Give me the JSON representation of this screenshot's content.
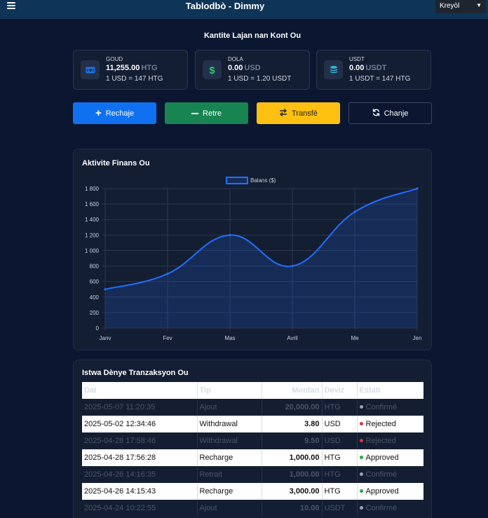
{
  "header": {
    "title": "Tablodbò - Dimmy",
    "language": "Kreyòl"
  },
  "balances_section": {
    "title": "Kantite Lajan nan Kont Ou",
    "cards": [
      {
        "label": "GOUD",
        "amount": "11,255.00",
        "currency": "HTG",
        "rate": "1 USD = 147 HTG",
        "icon": "money-bill-icon",
        "accent": "#1a73e8"
      },
      {
        "label": "DOLA",
        "amount": "0.00",
        "currency": "USD",
        "rate": "1 USD = 1.20 USDT",
        "icon": "dollar-icon",
        "accent": "#2ecc71"
      },
      {
        "label": "USDT",
        "amount": "0.00",
        "currency": "USDT",
        "rate": "1 USDT = 147 HTG",
        "icon": "coins-icon",
        "accent": "#2fb7d8"
      }
    ]
  },
  "actions": {
    "recharge": "Rechaje",
    "withdraw": "Retre",
    "transfer": "Transfè",
    "exchange": "Chanje"
  },
  "chart_section": {
    "title": "Aktivite Finans Ou"
  },
  "chart_data": {
    "type": "area",
    "categories": [
      "Janv",
      "Fev",
      "Mas",
      "Avril",
      "Me",
      "Jen"
    ],
    "series": [
      {
        "name": "Balans ($)",
        "values": [
          500,
          700,
          1200,
          800,
          1500,
          1800
        ],
        "color": "#1f6fff"
      }
    ],
    "ylim": [
      0,
      1800
    ],
    "yticks": [
      "0",
      "200",
      "400",
      "600",
      "800",
      "1 000",
      "1 200",
      "1 400",
      "1 600",
      "1 800"
    ],
    "grid": true,
    "legend": "top-center"
  },
  "transactions": {
    "title": "Istwa Dènye Tranzaksyon Ou",
    "columns": {
      "date": "Dat",
      "type": "Tip",
      "amount": "Montan",
      "currency": "Deviz",
      "status": "Estati"
    },
    "rows": [
      {
        "date": "2025-05-07 11:20:35",
        "type": "Ajout",
        "amount": "20,000.00",
        "currency": "HTG",
        "status": "Confirmé",
        "status_color": "#9aa3b2",
        "style": "dark"
      },
      {
        "date": "2025-05-02 12:34:46",
        "type": "Withdrawal",
        "amount": "3.80",
        "currency": "USD",
        "status": "Rejected",
        "status_color": "#dc3545",
        "style": "light"
      },
      {
        "date": "2025-04-28 17:58:46",
        "type": "Withdrawal",
        "amount": "9.50",
        "currency": "USD",
        "status": "Rejected",
        "status_color": "#dc3545",
        "style": "dark"
      },
      {
        "date": "2025-04-28 17:56:28",
        "type": "Recharge",
        "amount": "1,000.00",
        "currency": "HTG",
        "status": "Approved",
        "status_color": "#28a745",
        "style": "light"
      },
      {
        "date": "2025-04-26 14:16:35",
        "type": "Retrait",
        "amount": "1,000.00",
        "currency": "HTG",
        "status": "Confirmé",
        "status_color": "#9aa3b2",
        "style": "dark"
      },
      {
        "date": "2025-04-26 14:15:43",
        "type": "Recharge",
        "amount": "3,000.00",
        "currency": "HTG",
        "status": "Approved",
        "status_color": "#28a745",
        "style": "light"
      },
      {
        "date": "2025-04-24 10:22:55",
        "type": "Ajout",
        "amount": "10.00",
        "currency": "USDT",
        "status": "Confirmé",
        "status_color": "#9aa3b2",
        "style": "dark"
      }
    ]
  }
}
